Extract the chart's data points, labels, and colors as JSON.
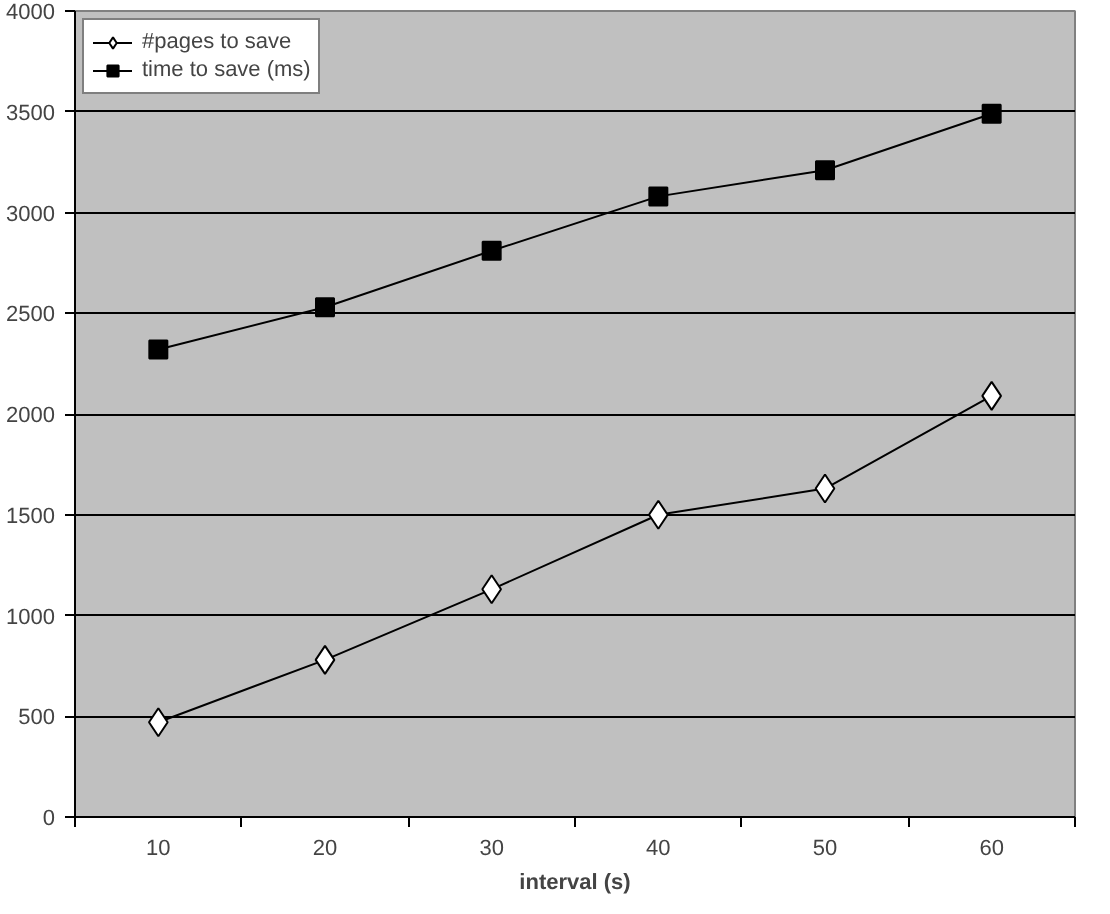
{
  "chart_data": {
    "type": "line",
    "xlabel": "interval (s)",
    "categories": [
      "10",
      "20",
      "30",
      "40",
      "50",
      "60"
    ],
    "series": [
      {
        "name": "#pages to save",
        "color": "#000000",
        "marker": "diamond",
        "values": [
          470,
          780,
          1130,
          1500,
          1630,
          2090
        ]
      },
      {
        "name": "time to save (ms)",
        "color": "#000000",
        "marker": "square",
        "values": [
          2320,
          2530,
          2810,
          3080,
          3210,
          3490
        ]
      }
    ],
    "ylim": [
      0,
      4000
    ],
    "yticks": [
      0,
      500,
      1000,
      1500,
      2000,
      2500,
      3000,
      3500,
      4000
    ],
    "grid": "y",
    "legend": "top left",
    "line_style": "solid"
  }
}
